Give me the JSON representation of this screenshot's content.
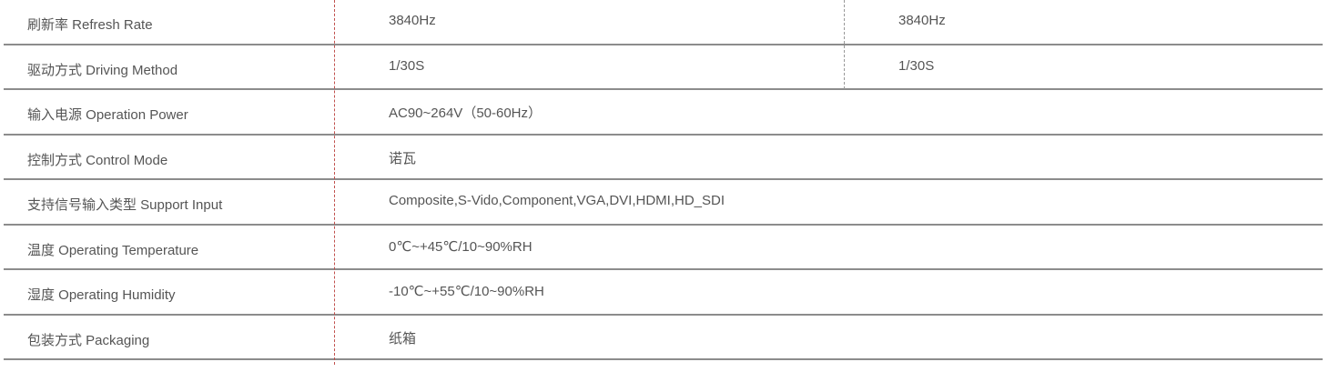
{
  "rows": [
    {
      "label": "刷新率 Refresh Rate",
      "value": "3840Hz",
      "value2": "3840Hz"
    },
    {
      "label": "驱动方式 Driving Method",
      "value": "1/30S",
      "value2": "1/30S"
    },
    {
      "label": "输入电源 Operation Power",
      "value": "AC90~264V（50-60Hz）"
    },
    {
      "label": "控制方式 Control Mode",
      "value": "诺瓦"
    },
    {
      "label": "支持信号输入类型 Support Input",
      "value": "Composite,S-Vido,Component,VGA,DVI,HDMI,HD_SDI"
    },
    {
      "label": "温度 Operating Temperature",
      "value": "0℃~+45℃/10~90%RH"
    },
    {
      "label": "湿度 Operating Humidity",
      "value": "-10℃~+55℃/10~90%RH"
    },
    {
      "label": "包装方式 Packaging",
      "value": "纸箱"
    }
  ],
  "colors": {
    "divider": "#8c8c8c",
    "column_divider": "#c0504d",
    "text": "#555555"
  }
}
